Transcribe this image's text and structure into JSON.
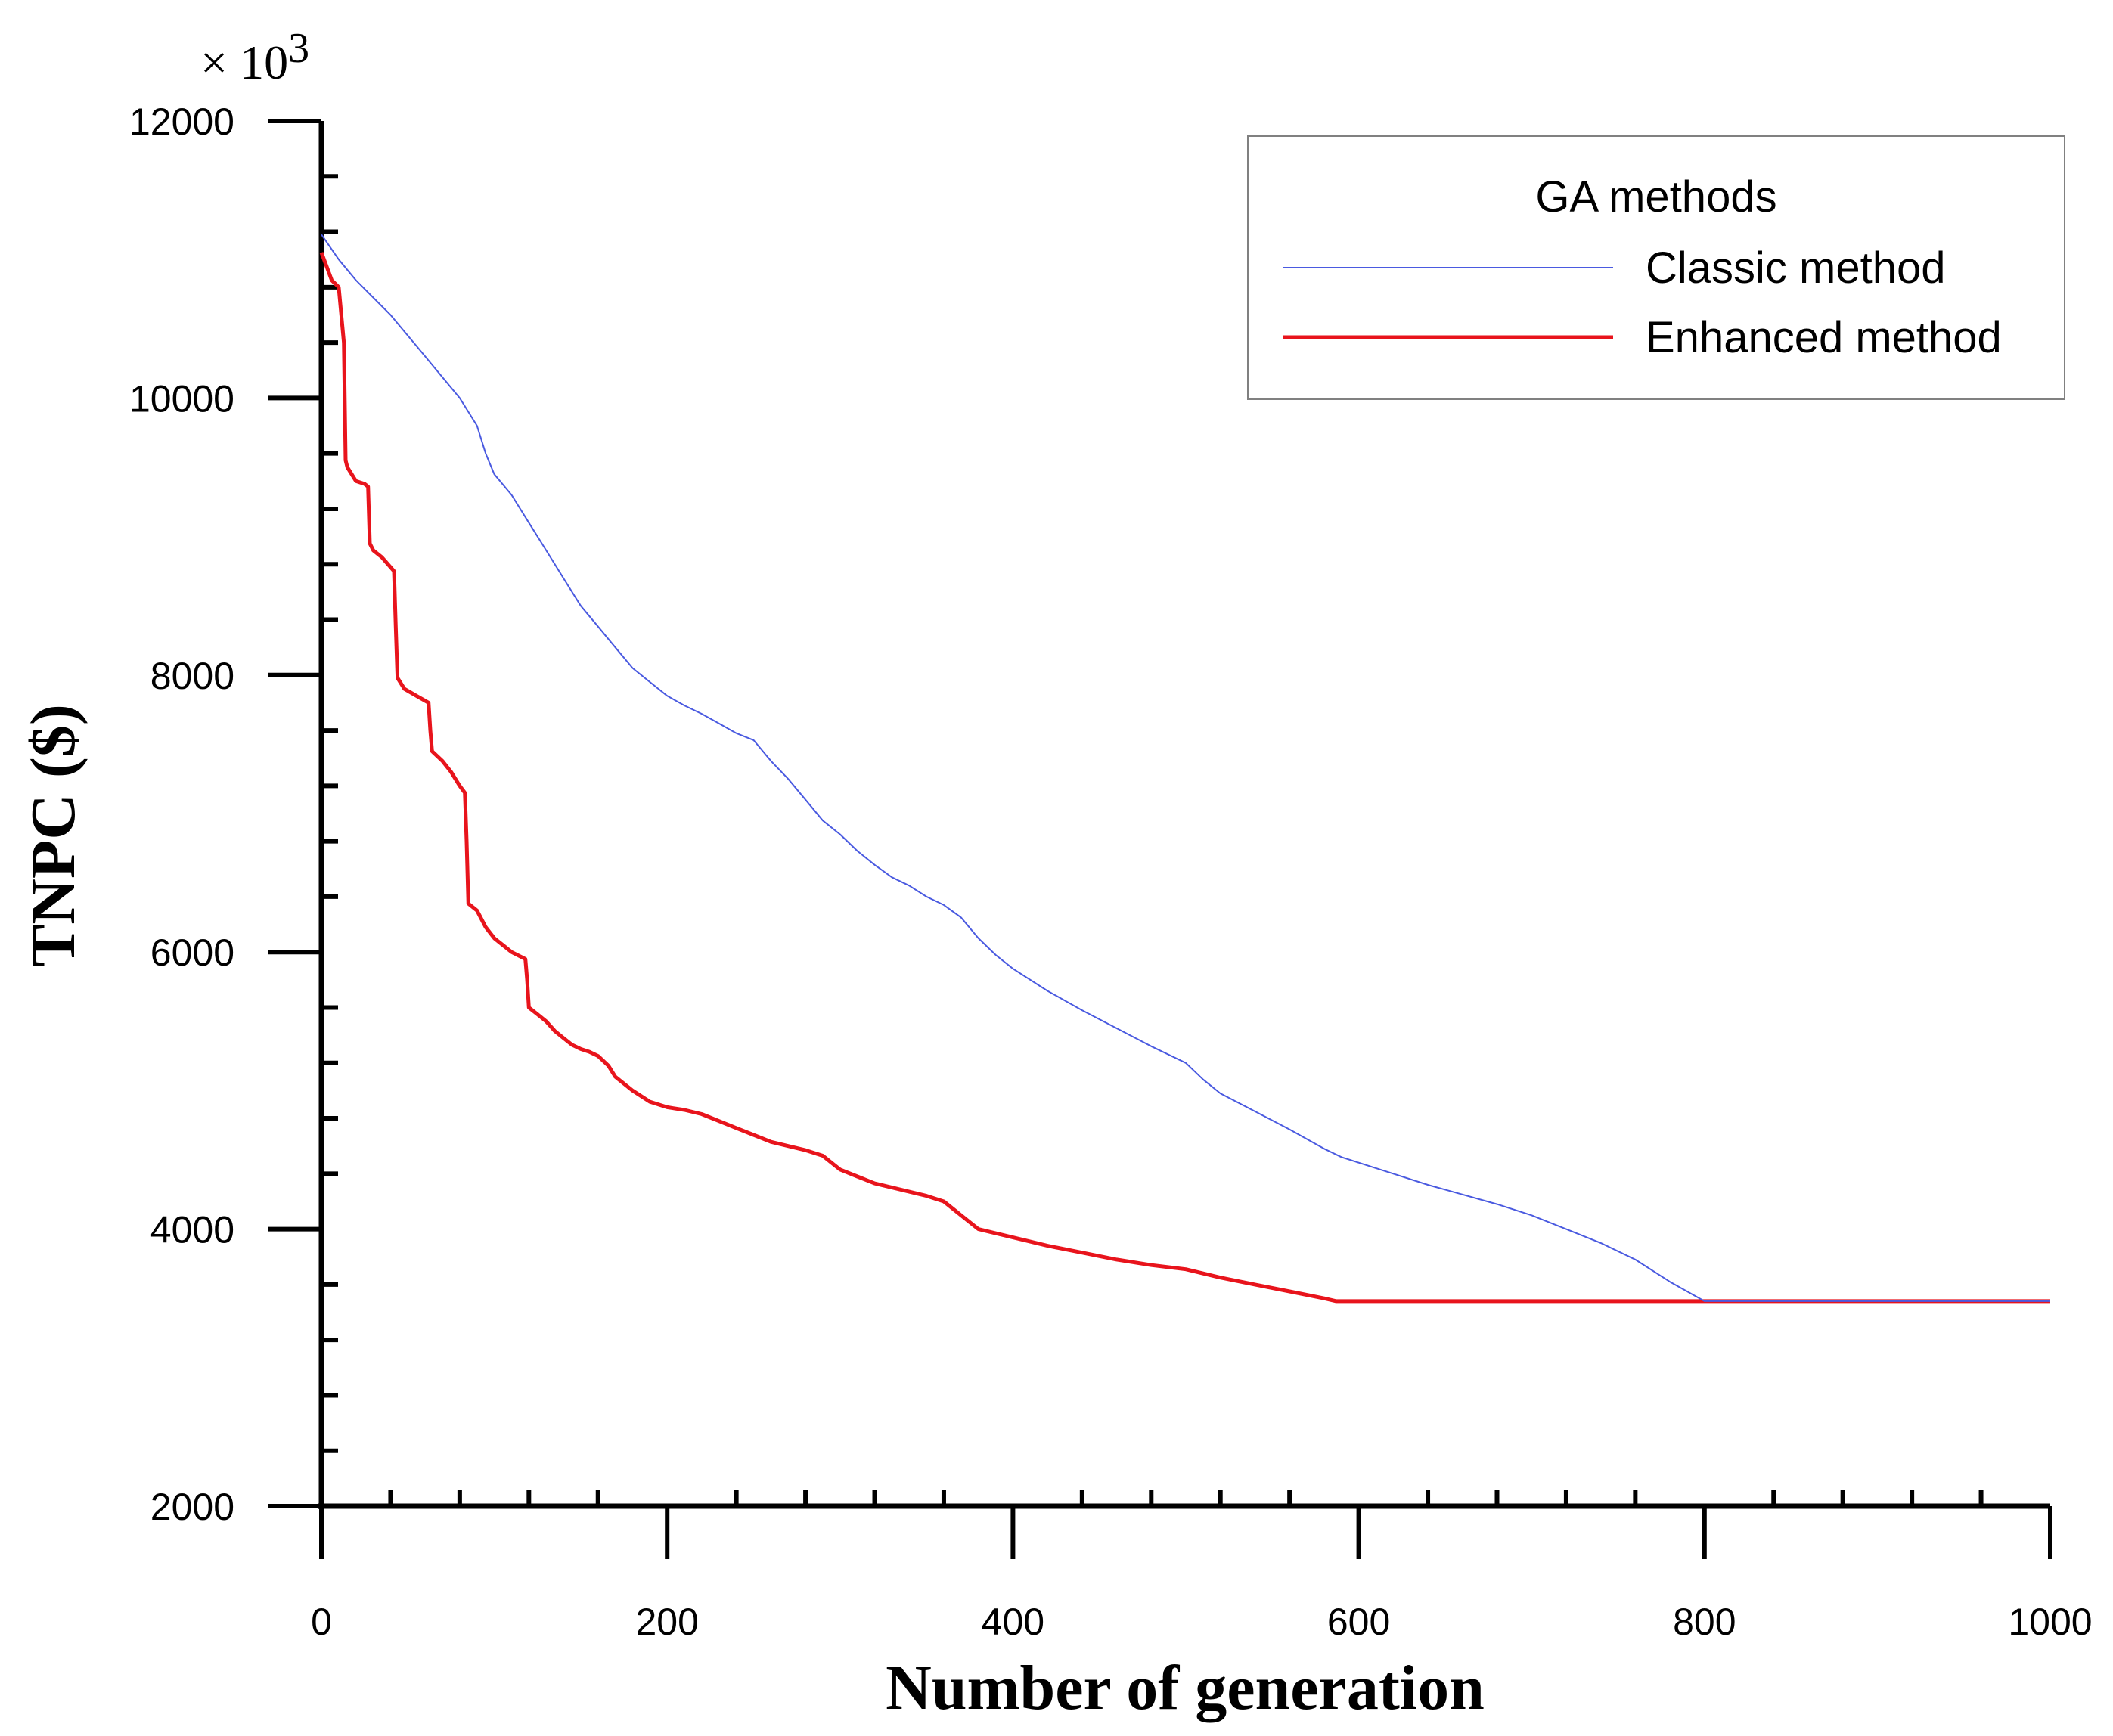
{
  "chart_data": {
    "type": "line",
    "title": "",
    "xlabel": "Number of generation",
    "ylabel": "TNPC ($)",
    "y_multiplier": {
      "prefix": "× 10",
      "exponent": "3"
    },
    "xlim": [
      0,
      1000
    ],
    "ylim": [
      2000,
      12000
    ],
    "x_ticks": [
      "0",
      "200",
      "400",
      "600",
      "800",
      "1000"
    ],
    "y_ticks": [
      "2000",
      "4000",
      "6000",
      "8000",
      "10000",
      "12000"
    ],
    "legend": {
      "title": "GA methods",
      "position": "top-right"
    },
    "series": [
      {
        "name": "Classic method",
        "color": "#4a5ae0",
        "x": [
          0,
          10,
          20,
          40,
          60,
          70,
          80,
          90,
          95,
          100,
          110,
          120,
          130,
          140,
          150,
          160,
          170,
          180,
          190,
          200,
          210,
          220,
          230,
          240,
          250,
          260,
          270,
          280,
          290,
          300,
          310,
          320,
          330,
          340,
          350,
          360,
          370,
          380,
          390,
          400,
          420,
          440,
          460,
          480,
          500,
          510,
          520,
          540,
          560,
          580,
          590,
          600,
          620,
          640,
          660,
          680,
          700,
          720,
          740,
          760,
          780,
          800,
          850,
          900,
          950,
          1000
        ],
        "values": [
          11180,
          11000,
          10850,
          10600,
          10300,
          10150,
          10000,
          9800,
          9600,
          9450,
          9300,
          9100,
          8900,
          8700,
          8500,
          8350,
          8200,
          8050,
          7950,
          7850,
          7780,
          7720,
          7650,
          7580,
          7530,
          7380,
          7250,
          7100,
          6950,
          6850,
          6730,
          6630,
          6540,
          6480,
          6400,
          6340,
          6250,
          6100,
          5980,
          5880,
          5720,
          5580,
          5450,
          5320,
          5200,
          5080,
          4980,
          4850,
          4720,
          4580,
          4520,
          4480,
          4400,
          4320,
          4250,
          4180,
          4100,
          4000,
          3900,
          3780,
          3620,
          3480,
          3480,
          3480,
          3480,
          3480
        ]
      },
      {
        "name": "Enhanced method",
        "color": "#e8141c",
        "x": [
          0,
          3,
          6,
          10,
          13,
          14,
          15,
          20,
          25,
          27,
          28,
          30,
          35,
          42,
          43,
          44,
          48,
          55,
          62,
          63,
          64,
          70,
          75,
          80,
          83,
          84,
          85,
          90,
          95,
          100,
          105,
          110,
          118,
          119,
          120,
          125,
          130,
          135,
          140,
          145,
          150,
          155,
          160,
          166,
          170,
          175,
          180,
          190,
          200,
          210,
          220,
          230,
          240,
          250,
          260,
          270,
          280,
          290,
          295,
          300,
          310,
          320,
          330,
          340,
          350,
          360,
          370,
          380,
          390,
          400,
          420,
          440,
          460,
          480,
          500,
          520,
          540,
          560,
          580,
          587,
          600,
          700,
          800,
          900,
          1000
        ],
        "values": [
          11050,
          10950,
          10850,
          10800,
          10400,
          9550,
          9500,
          9400,
          9380,
          9360,
          8950,
          8900,
          8850,
          8750,
          8350,
          7980,
          7900,
          7850,
          7800,
          7600,
          7450,
          7380,
          7300,
          7200,
          7150,
          6800,
          6350,
          6300,
          6180,
          6100,
          6050,
          6000,
          5950,
          5800,
          5600,
          5550,
          5500,
          5430,
          5380,
          5330,
          5300,
          5280,
          5250,
          5180,
          5100,
          5050,
          5000,
          4920,
          4880,
          4860,
          4830,
          4780,
          4730,
          4680,
          4630,
          4600,
          4570,
          4530,
          4480,
          4430,
          4380,
          4330,
          4300,
          4270,
          4240,
          4200,
          4100,
          4000,
          3970,
          3940,
          3880,
          3830,
          3780,
          3740,
          3710,
          3650,
          3600,
          3550,
          3500,
          3480,
          3480,
          3480,
          3480,
          3480,
          3480
        ]
      }
    ]
  }
}
